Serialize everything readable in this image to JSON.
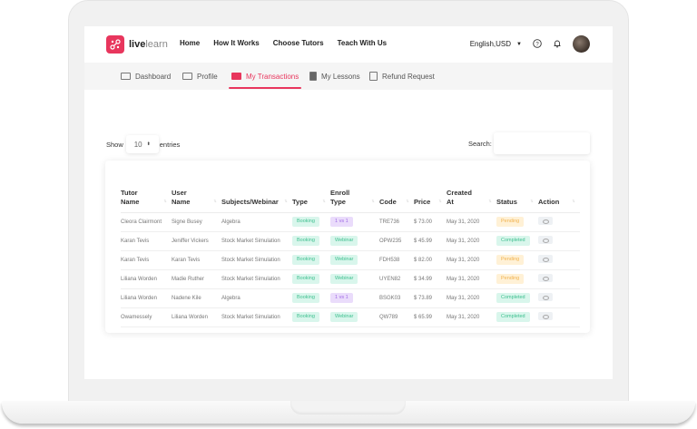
{
  "brand": {
    "name_bold": "live",
    "name_light": "learn",
    "color": "#e8365d"
  },
  "nav": [
    "Home",
    "How It Works",
    "Choose Tutors",
    "Teach With Us"
  ],
  "header_right": {
    "language": "English,USD"
  },
  "tabs": [
    {
      "label": "Dashboard",
      "icon": "id-card-icon"
    },
    {
      "label": "Profile",
      "icon": "id-card-icon"
    },
    {
      "label": "My Transactions",
      "icon": "credit-card-icon",
      "active": true
    },
    {
      "label": "My Lessons",
      "icon": "book-icon"
    },
    {
      "label": "Refund Request",
      "icon": "calendar-check-icon"
    }
  ],
  "controls": {
    "show_label": "Show",
    "entries_value": "10",
    "entries_label": "entries",
    "search_label": "Search:",
    "search_value": ""
  },
  "table": {
    "columns": [
      {
        "line1": "Tutor",
        "line2": "Name"
      },
      {
        "line1": "User",
        "line2": "Name"
      },
      {
        "line1": "",
        "line2": "Subjects/Webinar"
      },
      {
        "line1": "",
        "line2": "Type"
      },
      {
        "line1": "Enroll",
        "line2": "Type"
      },
      {
        "line1": "",
        "line2": "Code"
      },
      {
        "line1": "",
        "line2": "Price"
      },
      {
        "line1": "Created",
        "line2": "At"
      },
      {
        "line1": "",
        "line2": "Status"
      },
      {
        "line1": "",
        "line2": "Action"
      }
    ],
    "rows": [
      {
        "tutor": "Cleora Clairmont",
        "user": "Signe Busey",
        "subject": "Algebra",
        "type": "Booking",
        "enroll": "1 vs 1",
        "code": "TRE736",
        "price": "$ 73.00",
        "created": "May 31, 2020",
        "status": "Pending"
      },
      {
        "tutor": "Karan Tevis",
        "user": "Jeniffer Vickers",
        "subject": "Stock Market Simulation",
        "type": "Booking",
        "enroll": "Webinar",
        "code": "OPW235",
        "price": "$ 45.99",
        "created": "May 31, 2020",
        "status": "Completed"
      },
      {
        "tutor": "Karan Tevis",
        "user": "Karan Tevis",
        "subject": "Stock Market Simulation",
        "type": "Booking",
        "enroll": "Webinar",
        "code": "FDH538",
        "price": "$ 82.00",
        "created": "May 31, 2020",
        "status": "Pending"
      },
      {
        "tutor": "Liliana Worden",
        "user": "Madie Ruther",
        "subject": "Stock Market Simulation",
        "type": "Booking",
        "enroll": "Webinar",
        "code": "UYEN82",
        "price": "$ 34.99",
        "created": "May 31, 2020",
        "status": "Pending"
      },
      {
        "tutor": "Liliana Worden",
        "user": "Nadene Kile",
        "subject": "Algebra",
        "type": "Booking",
        "enroll": "1 vs 1",
        "code": "BSGK03",
        "price": "$ 73.89",
        "created": "May 31, 2020",
        "status": "Completed"
      },
      {
        "tutor": "Owamessely",
        "user": "Liliana Worden",
        "subject": "Stock Market Simulation",
        "type": "Booking",
        "enroll": "Webinar",
        "code": "QW789",
        "price": "$ 65.99",
        "created": "May 31, 2020",
        "status": "Completed"
      }
    ]
  },
  "colors": {
    "green": "#3dbf8e",
    "purple": "#a06be6",
    "yellow": "#f0b24e",
    "accent": "#e8365d"
  }
}
